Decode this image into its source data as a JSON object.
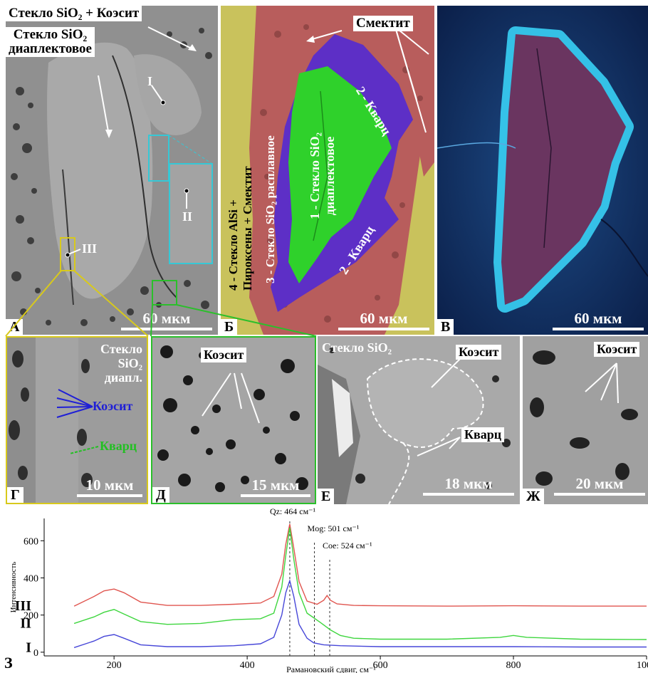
{
  "panels": {
    "A": {
      "label": "А",
      "scale": "60 мкм",
      "label_top": "Стекло SiO₂ + Коэсит",
      "label_glass_1": "Стекло SiO₂",
      "label_glass_2": "диаплектовое",
      "point_I": "I",
      "point_II": "II",
      "point_III": "III"
    },
    "B": {
      "label": "Б",
      "scale": "60 мкм",
      "smectite": "Смектит",
      "zone1_a": "1 - Стекло SiO₂",
      "zone1_b": "диаплектовое",
      "zone2_top": "2 - Кварц",
      "zone2_bottom": "2 - Кварц",
      "zone3": "3 - Стекло SiO₂ расплавное",
      "zone4_a": "4 - Стекло AlSi +",
      "zone4_b": "Пироксены + Смектит"
    },
    "V": {
      "label": "В",
      "scale": "60 мкм"
    },
    "G": {
      "label": "Г",
      "scale": "10 мкм",
      "glass_1": "Стекло",
      "glass_2": "SiO₂",
      "glass_3": "диапл.",
      "coesite": "Коэсит",
      "quartz": "Кварц"
    },
    "D": {
      "label": "Д",
      "scale": "15 мкм",
      "coesite": "Коэсит"
    },
    "E": {
      "label": "Е",
      "scale": "18 мкм",
      "glass": "Стекло SiO₂",
      "coesite": "Коэсит",
      "quartz": "Кварц"
    },
    "Zh": {
      "label": "Ж",
      "scale": "20 мкм",
      "coesite": "Коэсит"
    }
  },
  "colors": {
    "panel_B_green": "#2fd12b",
    "panel_B_purple": "#5d2fc6",
    "panel_B_red": "#b85d5c",
    "panel_B_yellow": "#c9c25c",
    "panel_V_cyan": "#39d0f5",
    "panel_V_core": "#6a3560",
    "sem_gray": "#8f8f8f",
    "frame_yellow": "#d8c91c",
    "frame_green": "#2bbf2b",
    "frame_cyan": "#36c8d6",
    "series_III": "#e0554f",
    "series_II": "#3fd63f",
    "series_I": "#4646d8"
  },
  "chart_panel_label": "З",
  "chart_data": {
    "type": "line",
    "xlabel": "Рамановский сдвиг, см⁻¹",
    "ylabel": "Интенсивность",
    "xlim": [
      95,
      1000
    ],
    "ylim": [
      -20,
      720
    ],
    "xticks": [
      200,
      400,
      600,
      800,
      1000
    ],
    "yticks": [
      0,
      200,
      400,
      600
    ],
    "grid": false,
    "series": [
      {
        "name": "III",
        "color": "#e0554f",
        "x": [
          140,
          170,
          185,
          200,
          215,
          240,
          280,
          330,
          380,
          420,
          440,
          452,
          458,
          464,
          470,
          478,
          490,
          505,
          515,
          520,
          525,
          535,
          560,
          600,
          700,
          800,
          900,
          1000
        ],
        "y": [
          248,
          300,
          330,
          340,
          320,
          270,
          252,
          252,
          258,
          265,
          300,
          420,
          580,
          690,
          560,
          380,
          275,
          258,
          280,
          305,
          280,
          260,
          252,
          250,
          248,
          250,
          248,
          248
        ]
      },
      {
        "name": "II",
        "color": "#3fd63f",
        "x": [
          140,
          170,
          185,
          200,
          215,
          240,
          280,
          330,
          380,
          420,
          440,
          452,
          458,
          464,
          470,
          478,
          490,
          500,
          510,
          525,
          540,
          560,
          600,
          700,
          780,
          800,
          820,
          900,
          1000
        ],
        "y": [
          155,
          190,
          215,
          230,
          205,
          165,
          150,
          155,
          175,
          180,
          210,
          350,
          520,
          670,
          500,
          320,
          210,
          185,
          160,
          120,
          90,
          75,
          70,
          70,
          80,
          90,
          80,
          70,
          68
        ]
      },
      {
        "name": "I",
        "color": "#4646d8",
        "x": [
          140,
          170,
          185,
          200,
          215,
          240,
          280,
          330,
          380,
          420,
          440,
          452,
          458,
          464,
          470,
          478,
          490,
          500,
          515,
          540,
          600,
          700,
          800,
          900,
          1000
        ],
        "y": [
          25,
          60,
          85,
          95,
          75,
          40,
          30,
          30,
          35,
          45,
          80,
          200,
          320,
          385,
          300,
          150,
          75,
          50,
          40,
          35,
          30,
          30,
          30,
          28,
          28
        ]
      }
    ],
    "reference_lines": [
      {
        "x": 464,
        "label": "Qz: 464 см⁻¹"
      },
      {
        "x": 501,
        "label": "Mog: 501 см⁻¹"
      },
      {
        "x": 524,
        "label": "Coe: 524 см⁻¹"
      }
    ]
  }
}
